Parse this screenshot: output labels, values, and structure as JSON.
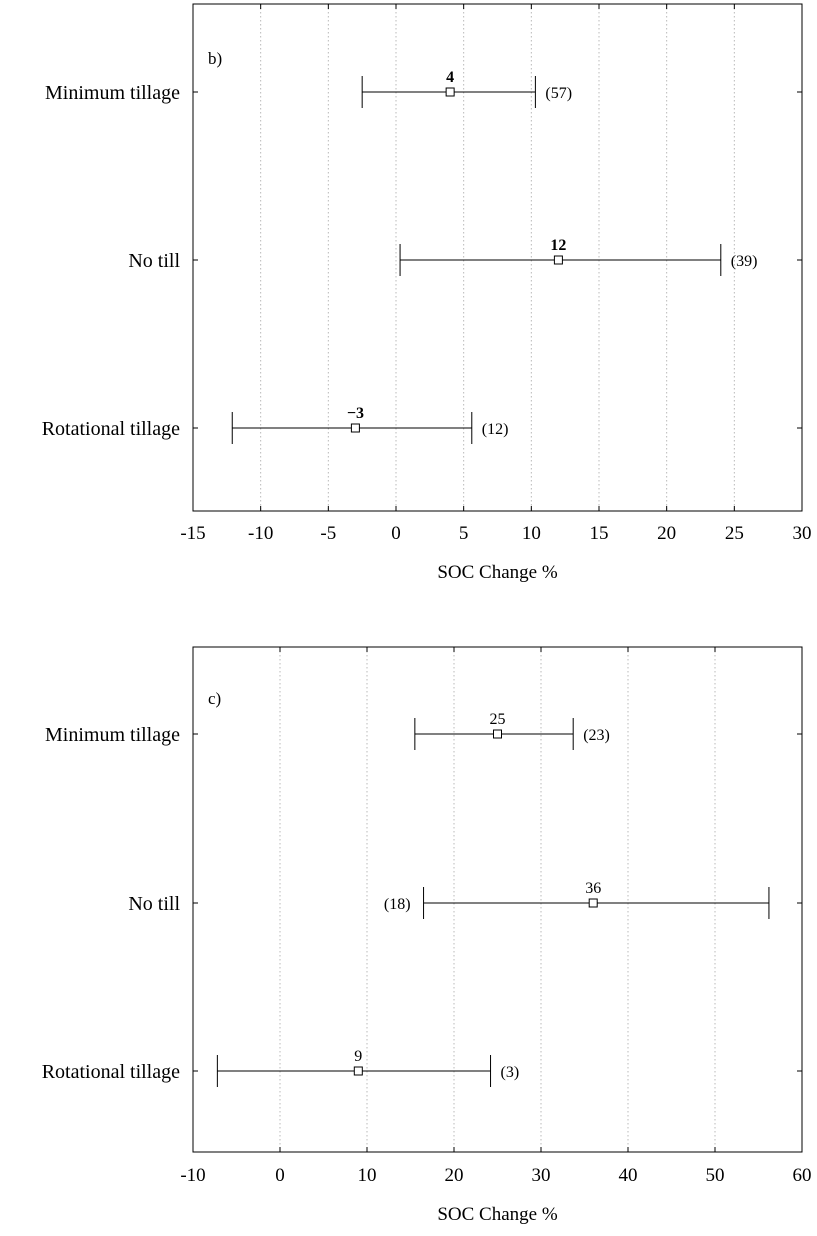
{
  "chart_data": [
    {
      "type": "forest",
      "panel_label": "b)",
      "xlabel": "SOC Change %",
      "xlim": [
        -15,
        30
      ],
      "xticks": [
        -15,
        -10,
        -5,
        0,
        5,
        10,
        15,
        20,
        25,
        30
      ],
      "xtick_labels": [
        "-15",
        "-10",
        "-5",
        "0",
        "5",
        "10",
        "15",
        "20",
        "25",
        "30"
      ],
      "grid": "vertical dotted",
      "bold_mean_labels": true,
      "categories": [
        "Minimum tillage",
        "No till",
        "Rotational tillage"
      ],
      "rows": [
        {
          "category": "Minimum tillage",
          "mean": 4,
          "low": -2.5,
          "high": 10.3,
          "mean_label": "4",
          "n_label": "(57)",
          "n_side": "right"
        },
        {
          "category": "No till",
          "mean": 12,
          "low": 0.3,
          "high": 24,
          "mean_label": "12",
          "n_label": "(39)",
          "n_side": "right"
        },
        {
          "category": "Rotational tillage",
          "mean": -3,
          "low": -12.1,
          "high": 5.6,
          "mean_label": "−3",
          "n_label": "(12)",
          "n_side": "right"
        }
      ]
    },
    {
      "type": "forest",
      "panel_label": "c)",
      "xlabel": "SOC Change %",
      "xlim": [
        -10,
        60
      ],
      "xticks": [
        -10,
        0,
        10,
        20,
        30,
        40,
        50,
        60
      ],
      "xtick_labels": [
        "-10",
        "0",
        "10",
        "20",
        "30",
        "40",
        "50",
        "60"
      ],
      "grid": "vertical dotted",
      "bold_mean_labels": false,
      "categories": [
        "Minimum tillage",
        "No till",
        "Rotational tillage"
      ],
      "rows": [
        {
          "category": "Minimum tillage",
          "mean": 25,
          "low": 15.5,
          "high": 33.7,
          "mean_label": "25",
          "n_label": "(23)",
          "n_side": "right"
        },
        {
          "category": "No till",
          "mean": 36,
          "low": 16.5,
          "high": 56.2,
          "mean_label": "36",
          "n_label": "(18)",
          "n_side": "left"
        },
        {
          "category": "Rotational tillage",
          "mean": 9,
          "low": -7.2,
          "high": 24.2,
          "mean_label": "9",
          "n_label": "(3)",
          "n_side": "right"
        }
      ]
    }
  ]
}
